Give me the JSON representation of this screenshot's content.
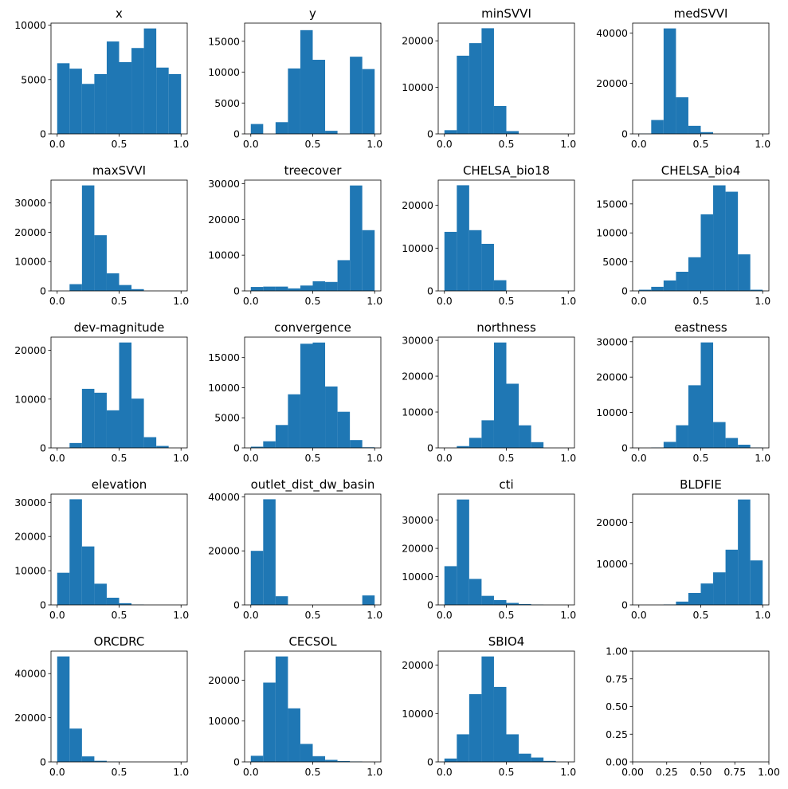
{
  "chart_data": [
    {
      "type": "histogram",
      "title": "x",
      "bins": [
        0,
        0.1,
        0.2,
        0.3,
        0.4,
        0.5,
        0.6,
        0.7,
        0.8,
        0.9,
        1
      ],
      "values": [
        6500,
        6000,
        4600,
        5500,
        8500,
        6600,
        7900,
        9700,
        6100,
        5500
      ],
      "color": "#1f77b4",
      "xlim": [
        -0.05,
        1.05
      ],
      "xticks": [
        {
          "value": 0,
          "label": "0.0"
        },
        0.5,
        {
          "value": 1,
          "label": "1.0"
        }
      ],
      "ylim": [
        0,
        10190
      ],
      "yticks": [
        0,
        5000,
        10000
      ]
    },
    {
      "type": "histogram",
      "title": "y",
      "bins": [
        0,
        0.1,
        0.2,
        0.3,
        0.4,
        0.5,
        0.6,
        0.7,
        0.8,
        0.9,
        1
      ],
      "values": [
        1600,
        0,
        1900,
        10600,
        16800,
        12000,
        500,
        0,
        12500,
        10500
      ],
      "color": "#1f77b4",
      "xlim": [
        -0.05,
        1.05
      ],
      "xticks": [
        {
          "value": 0,
          "label": "0.0"
        },
        0.5,
        {
          "value": 1,
          "label": "1.0"
        }
      ],
      "ylim": [
        0,
        17940
      ],
      "yticks": [
        0,
        5000,
        10000,
        15000
      ]
    },
    {
      "type": "histogram",
      "title": "minSVVI",
      "bins": [
        0,
        0.1,
        0.2,
        0.3,
        0.4,
        0.5,
        0.6,
        0.7,
        0.8,
        0.9,
        1
      ],
      "values": [
        800,
        16800,
        19500,
        22700,
        6000,
        600,
        0,
        0,
        0,
        0
      ],
      "color": "#1f77b4",
      "xlim": [
        -0.05,
        1.05
      ],
      "xticks": [
        {
          "value": 0,
          "label": "0.0"
        },
        0.5,
        {
          "value": 1,
          "label": "1.0"
        }
      ],
      "ylim": [
        0,
        23800
      ],
      "yticks": [
        0,
        10000,
        20000
      ]
    },
    {
      "type": "histogram",
      "title": "medSVVI",
      "bins": [
        0,
        0.1,
        0.2,
        0.3,
        0.4,
        0.5,
        0.6,
        0.7,
        0.8,
        0.9,
        1
      ],
      "values": [
        100,
        5500,
        41800,
        14500,
        3200,
        700,
        0,
        0,
        0,
        0
      ],
      "color": "#1f77b4",
      "xlim": [
        -0.05,
        1.05
      ],
      "xticks": [
        {
          "value": 0,
          "label": "0.0"
        },
        0.5,
        {
          "value": 1,
          "label": "1.0"
        }
      ],
      "ylim": [
        0,
        43900
      ],
      "yticks": [
        0,
        20000,
        40000
      ]
    },
    {
      "type": "histogram",
      "title": "maxSVVI",
      "bins": [
        0,
        0.1,
        0.2,
        0.3,
        0.4,
        0.5,
        0.6,
        0.7,
        0.8,
        0.9,
        1
      ],
      "values": [
        0,
        2300,
        36000,
        19000,
        6000,
        2000,
        600,
        0,
        0,
        0
      ],
      "color": "#1f77b4",
      "xlim": [
        -0.05,
        1.05
      ],
      "xticks": [
        {
          "value": 0,
          "label": "0.0"
        },
        0.5,
        {
          "value": 1,
          "label": "1.0"
        }
      ],
      "ylim": [
        0,
        37800
      ],
      "yticks": [
        0,
        10000,
        20000,
        30000
      ]
    },
    {
      "type": "histogram",
      "title": "treecover",
      "bins": [
        0,
        0.1,
        0.2,
        0.3,
        0.4,
        0.5,
        0.6,
        0.7,
        0.8,
        0.9,
        1
      ],
      "values": [
        1100,
        1200,
        1200,
        700,
        1500,
        2700,
        2500,
        8600,
        29500,
        17000
      ],
      "color": "#1f77b4",
      "xlim": [
        -0.05,
        1.05
      ],
      "xticks": [
        {
          "value": 0,
          "label": "0.0"
        },
        0.5,
        {
          "value": 1,
          "label": "1.0"
        }
      ],
      "ylim": [
        0,
        31000
      ],
      "yticks": [
        0,
        10000,
        20000,
        30000
      ]
    },
    {
      "type": "histogram",
      "title": "CHELSA_bio18",
      "bins": [
        0,
        0.1,
        0.2,
        0.3,
        0.4,
        0.5,
        0.6,
        0.7,
        0.8,
        0.9,
        1
      ],
      "values": [
        13800,
        24700,
        14200,
        11000,
        2500,
        0,
        0,
        0,
        0,
        0
      ],
      "color": "#1f77b4",
      "xlim": [
        -0.05,
        1.05
      ],
      "xticks": [
        {
          "value": 0,
          "label": "0.0"
        },
        0.5,
        {
          "value": 1,
          "label": "1.0"
        }
      ],
      "ylim": [
        0,
        25900
      ],
      "yticks": [
        0,
        10000,
        20000
      ]
    },
    {
      "type": "histogram",
      "title": "CHELSA_bio4",
      "bins": [
        0,
        0.1,
        0.2,
        0.3,
        0.4,
        0.5,
        0.6,
        0.7,
        0.8,
        0.9,
        1
      ],
      "values": [
        200,
        700,
        1800,
        3300,
        5800,
        13200,
        18200,
        17100,
        6300,
        200
      ],
      "color": "#1f77b4",
      "xlim": [
        -0.05,
        1.05
      ],
      "xticks": [
        {
          "value": 0,
          "label": "0.0"
        },
        0.5,
        {
          "value": 1,
          "label": "1.0"
        }
      ],
      "ylim": [
        0,
        19100
      ],
      "yticks": [
        0,
        5000,
        10000,
        15000
      ]
    },
    {
      "type": "histogram",
      "title": "dev-magnitude",
      "bins": [
        0,
        0.1,
        0.2,
        0.3,
        0.4,
        0.5,
        0.6,
        0.7,
        0.8,
        0.9,
        1
      ],
      "values": [
        0,
        1000,
        12100,
        11300,
        7700,
        21600,
        10100,
        2200,
        400,
        0
      ],
      "color": "#1f77b4",
      "xlim": [
        -0.05,
        1.05
      ],
      "xticks": [
        {
          "value": 0,
          "label": "0.0"
        },
        0.5,
        {
          "value": 1,
          "label": "1.0"
        }
      ],
      "ylim": [
        0,
        22700
      ],
      "yticks": [
        0,
        10000,
        20000
      ]
    },
    {
      "type": "histogram",
      "title": "convergence",
      "bins": [
        0,
        0.1,
        0.2,
        0.3,
        0.4,
        0.5,
        0.6,
        0.7,
        0.8,
        0.9,
        1
      ],
      "values": [
        200,
        1100,
        3800,
        8900,
        17300,
        17500,
        10200,
        6000,
        1300,
        100
      ],
      "color": "#1f77b4",
      "xlim": [
        -0.05,
        1.05
      ],
      "xticks": [
        {
          "value": 0,
          "label": "0.0"
        },
        0.5,
        {
          "value": 1,
          "label": "1.0"
        }
      ],
      "ylim": [
        0,
        18400
      ],
      "yticks": [
        0,
        5000,
        10000,
        15000
      ]
    },
    {
      "type": "histogram",
      "title": "northness",
      "bins": [
        0,
        0.1,
        0.2,
        0.3,
        0.4,
        0.5,
        0.6,
        0.7,
        0.8,
        0.9,
        1
      ],
      "values": [
        0,
        500,
        2800,
        7700,
        29400,
        17900,
        6300,
        1600,
        0,
        0
      ],
      "color": "#1f77b4",
      "xlim": [
        -0.05,
        1.05
      ],
      "xticks": [
        {
          "value": 0,
          "label": "0.0"
        },
        0.5,
        {
          "value": 1,
          "label": "1.0"
        }
      ],
      "ylim": [
        0,
        30900
      ],
      "yticks": [
        0,
        10000,
        20000,
        30000
      ]
    },
    {
      "type": "histogram",
      "title": "eastness",
      "bins": [
        0,
        0.1,
        0.2,
        0.3,
        0.4,
        0.5,
        0.6,
        0.7,
        0.8,
        0.9,
        1
      ],
      "values": [
        0,
        100,
        1700,
        6400,
        17700,
        29800,
        7300,
        2800,
        900,
        100
      ],
      "color": "#1f77b4",
      "xlim": [
        -0.05,
        1.05
      ],
      "xticks": [
        {
          "value": 0,
          "label": "0.0"
        },
        0.5,
        {
          "value": 1,
          "label": "1.0"
        }
      ],
      "ylim": [
        0,
        31300
      ],
      "yticks": [
        0,
        10000,
        20000,
        30000
      ]
    },
    {
      "type": "histogram",
      "title": "elevation",
      "bins": [
        0,
        0.1,
        0.2,
        0.3,
        0.4,
        0.5,
        0.6,
        0.7,
        0.8,
        0.9,
        1
      ],
      "values": [
        9400,
        30900,
        17100,
        6200,
        2100,
        500,
        100,
        0,
        0,
        0
      ],
      "color": "#1f77b4",
      "xlim": [
        -0.05,
        1.05
      ],
      "xticks": [
        {
          "value": 0,
          "label": "0.0"
        },
        0.5,
        {
          "value": 1,
          "label": "1.0"
        }
      ],
      "ylim": [
        0,
        32400
      ],
      "yticks": [
        0,
        10000,
        20000,
        30000
      ]
    },
    {
      "type": "histogram",
      "title": "outlet_dist_dw_basin",
      "bins": [
        0,
        0.1,
        0.2,
        0.3,
        0.4,
        0.5,
        0.6,
        0.7,
        0.8,
        0.9,
        1
      ],
      "values": [
        20000,
        39100,
        3200,
        0,
        0,
        0,
        0,
        0,
        0,
        3500
      ],
      "color": "#1f77b4",
      "xlim": [
        -0.05,
        1.05
      ],
      "xticks": [
        {
          "value": 0,
          "label": "0.0"
        },
        0.5,
        {
          "value": 1,
          "label": "1.0"
        }
      ],
      "ylim": [
        0,
        41000
      ],
      "yticks": [
        0,
        20000,
        40000
      ]
    },
    {
      "type": "histogram",
      "title": "cti",
      "bins": [
        0,
        0.1,
        0.2,
        0.3,
        0.4,
        0.5,
        0.6,
        0.7,
        0.8,
        0.9,
        1
      ],
      "values": [
        13700,
        37300,
        9200,
        3200,
        1700,
        700,
        300,
        100,
        0,
        0
      ],
      "color": "#1f77b4",
      "xlim": [
        -0.05,
        1.05
      ],
      "xticks": [
        {
          "value": 0,
          "label": "0.0"
        },
        0.5,
        {
          "value": 1,
          "label": "1.0"
        }
      ],
      "ylim": [
        0,
        39200
      ],
      "yticks": [
        0,
        10000,
        20000,
        30000
      ]
    },
    {
      "type": "histogram",
      "title": "BLDFIE",
      "bins": [
        0,
        0.1,
        0.2,
        0.3,
        0.4,
        0.5,
        0.6,
        0.7,
        0.8,
        0.9,
        1
      ],
      "values": [
        0,
        0,
        100,
        800,
        2900,
        5200,
        7900,
        13400,
        25600,
        10800
      ],
      "color": "#1f77b4",
      "xlim": [
        -0.05,
        1.05
      ],
      "xticks": [
        {
          "value": 0,
          "label": "0.0"
        },
        0.5,
        {
          "value": 1,
          "label": "1.0"
        }
      ],
      "ylim": [
        0,
        26900
      ],
      "yticks": [
        0,
        10000,
        20000
      ]
    },
    {
      "type": "histogram",
      "title": "ORCDRC",
      "bins": [
        0,
        0.1,
        0.2,
        0.3,
        0.4,
        0.5,
        0.6,
        0.7,
        0.8,
        0.9,
        1
      ],
      "values": [
        47800,
        15100,
        2500,
        500,
        100,
        0,
        0,
        0,
        0,
        0
      ],
      "color": "#1f77b4",
      "xlim": [
        -0.05,
        1.05
      ],
      "xticks": [
        {
          "value": 0,
          "label": "0.0"
        },
        0.5,
        {
          "value": 1,
          "label": "1.0"
        }
      ],
      "ylim": [
        0,
        50200
      ],
      "yticks": [
        0,
        20000,
        40000
      ]
    },
    {
      "type": "histogram",
      "title": "CECSOL",
      "bins": [
        0,
        0.1,
        0.2,
        0.3,
        0.4,
        0.5,
        0.6,
        0.7,
        0.8,
        0.9,
        1
      ],
      "values": [
        1500,
        19400,
        25800,
        13100,
        4400,
        1400,
        500,
        200,
        100,
        0
      ],
      "color": "#1f77b4",
      "xlim": [
        -0.05,
        1.05
      ],
      "xticks": [
        {
          "value": 0,
          "label": "0.0"
        },
        0.5,
        {
          "value": 1,
          "label": "1.0"
        }
      ],
      "ylim": [
        0,
        27100
      ],
      "yticks": [
        0,
        10000,
        20000
      ]
    },
    {
      "type": "histogram",
      "title": "SBIO4",
      "bins": [
        0,
        0.1,
        0.2,
        0.3,
        0.4,
        0.5,
        0.6,
        0.7,
        0.8,
        0.9,
        1
      ],
      "values": [
        700,
        5700,
        14000,
        21800,
        15500,
        5700,
        1700,
        900,
        200,
        0
      ],
      "color": "#1f77b4",
      "xlim": [
        -0.05,
        1.05
      ],
      "xticks": [
        {
          "value": 0,
          "label": "0.0"
        },
        0.5,
        {
          "value": 1,
          "label": "1.0"
        }
      ],
      "ylim": [
        0,
        22900
      ],
      "yticks": [
        0,
        10000,
        20000
      ]
    },
    {
      "type": "blank",
      "xlim": [
        0,
        1
      ],
      "xticks": [
        {
          "value": 0,
          "label": "0.00"
        },
        {
          "value": 0.25,
          "label": "0.25"
        },
        {
          "value": 0.5,
          "label": "0.50"
        },
        {
          "value": 0.75,
          "label": "0.75"
        },
        {
          "value": 1,
          "label": "1.00"
        }
      ],
      "ylim": [
        0,
        1
      ],
      "yticks": [
        {
          "value": 0,
          "label": "0.00"
        },
        {
          "value": 0.25,
          "label": "0.25"
        },
        {
          "value": 0.5,
          "label": "0.50"
        },
        {
          "value": 0.75,
          "label": "0.75"
        },
        {
          "value": 1,
          "label": "1.00"
        }
      ]
    }
  ]
}
